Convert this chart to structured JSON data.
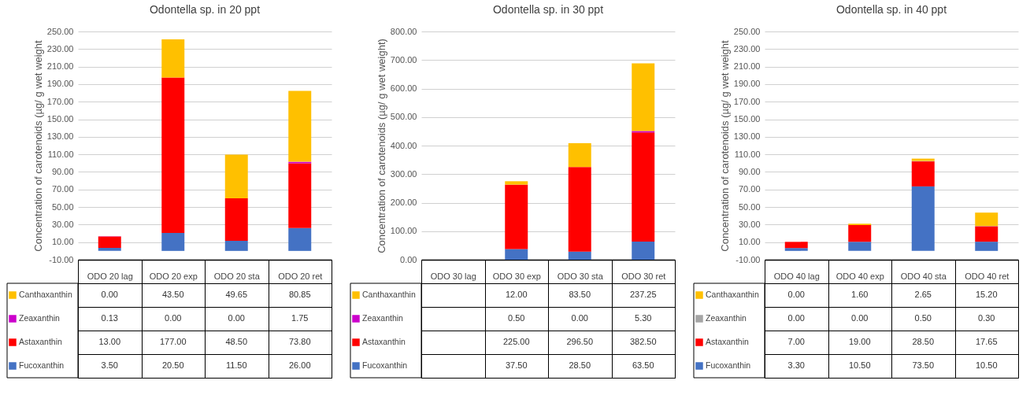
{
  "chart_data": [
    {
      "type": "bar",
      "title": "Odontella sp. in 20 ppt",
      "ylabel": "Concentration of carotenoids (µg/ g wet weight",
      "categories": [
        "ODO 20 lag",
        "ODO 20 exp",
        "ODO 20 sta",
        "ODO 20 ret"
      ],
      "stacked": true,
      "grid": "y",
      "legend": "bottom left",
      "ylim": [
        -10,
        250
      ],
      "yticks": [
        {
          "value": -10,
          "label": "-10.00"
        },
        {
          "value": 10,
          "label": "10.00"
        },
        {
          "value": 30,
          "label": "30.00"
        },
        {
          "value": 50,
          "label": "50.00"
        },
        {
          "value": 70,
          "label": "70.00"
        },
        {
          "value": 90,
          "label": "90.00"
        },
        {
          "value": 110,
          "label": "110.00"
        },
        {
          "value": 130,
          "label": "130.00"
        },
        {
          "value": 150,
          "label": "150.00"
        },
        {
          "value": 170,
          "label": "170.00"
        },
        {
          "value": 190,
          "label": "190.00"
        },
        {
          "value": 210,
          "label": "210.00"
        },
        {
          "value": 230,
          "label": "230.00"
        },
        {
          "value": 250,
          "label": "250.00"
        }
      ],
      "series": [
        {
          "name": "Fucoxanthin",
          "color": "#4472c4",
          "values": [
            3.5,
            20.5,
            11.5,
            26
          ],
          "value_labels": [
            "3.50",
            "20.50",
            "11.50",
            "26.00"
          ]
        },
        {
          "name": "Astaxanthin",
          "color": "#ff0000",
          "values": [
            13,
            177,
            48.5,
            73.8
          ],
          "value_labels": [
            "13.00",
            "177.00",
            "48.50",
            "73.80"
          ]
        },
        {
          "name": "Zeaxanthin",
          "color": "#cc00cc",
          "values": [
            0.13,
            0,
            0,
            1.75
          ],
          "value_labels": [
            "0.13",
            "0.00",
            "0.00",
            "1.75"
          ]
        },
        {
          "name": "Canthaxanthin",
          "color": "#ffc000",
          "values": [
            0,
            43.5,
            49.65,
            80.85
          ],
          "value_labels": [
            "0.00",
            "43.50",
            "49.65",
            "80.85"
          ]
        }
      ]
    },
    {
      "type": "bar",
      "title": "Odontella sp. in 30 ppt",
      "ylabel": "Concentration of carotenoids (µg/ g wet weight)",
      "categories": [
        "ODO 30 lag",
        "ODO 30 exp",
        "ODO 30 sta",
        "ODO 30 ret"
      ],
      "stacked": true,
      "grid": "y",
      "legend": "bottom left",
      "ylim": [
        0,
        800
      ],
      "yticks": [
        {
          "value": 0,
          "label": "0.00"
        },
        {
          "value": 100,
          "label": "100.00"
        },
        {
          "value": 200,
          "label": "200.00"
        },
        {
          "value": 300,
          "label": "300.00"
        },
        {
          "value": 400,
          "label": "400.00"
        },
        {
          "value": 500,
          "label": "500.00"
        },
        {
          "value": 600,
          "label": "600.00"
        },
        {
          "value": 700,
          "label": "700.00"
        },
        {
          "value": 800,
          "label": "800.00"
        }
      ],
      "series": [
        {
          "name": "Fucoxanthin",
          "color": "#4472c4",
          "values": [
            null,
            37.5,
            28.5,
            63.5
          ],
          "value_labels": [
            null,
            "37.50",
            "28.50",
            "63.50"
          ]
        },
        {
          "name": "Astaxanthin",
          "color": "#ff0000",
          "values": [
            null,
            225,
            296.5,
            382.5
          ],
          "value_labels": [
            null,
            "225.00",
            "296.50",
            "382.50"
          ]
        },
        {
          "name": "Zeaxanthin",
          "color": "#cc00cc",
          "values": [
            null,
            0.5,
            0,
            5.3
          ],
          "value_labels": [
            null,
            "0.50",
            "0.00",
            "5.30"
          ]
        },
        {
          "name": "Canthaxanthin",
          "color": "#ffc000",
          "values": [
            null,
            12,
            83.5,
            237.25
          ],
          "value_labels": [
            null,
            "12.00",
            "83.50",
            "237.25"
          ]
        }
      ]
    },
    {
      "type": "bar",
      "title": "Odontella sp. in 40 ppt",
      "ylabel": "Concentration of carotenoids (µg/ g wet weight",
      "categories": [
        "ODO 40 lag",
        "ODO 40 exp",
        "ODO 40 sta",
        "ODO 40 ret"
      ],
      "stacked": true,
      "grid": "y",
      "legend": "bottom left",
      "ylim": [
        -10,
        250
      ],
      "yticks": [
        {
          "value": -10,
          "label": "-10.00"
        },
        {
          "value": 10,
          "label": "10.00"
        },
        {
          "value": 30,
          "label": "30.00"
        },
        {
          "value": 50,
          "label": "50.00"
        },
        {
          "value": 70,
          "label": "70.00"
        },
        {
          "value": 90,
          "label": "90.00"
        },
        {
          "value": 110,
          "label": "110.00"
        },
        {
          "value": 130,
          "label": "130.00"
        },
        {
          "value": 150,
          "label": "150.00"
        },
        {
          "value": 170,
          "label": "170.00"
        },
        {
          "value": 190,
          "label": "190.00"
        },
        {
          "value": 210,
          "label": "210.00"
        },
        {
          "value": 230,
          "label": "230.00"
        },
        {
          "value": 250,
          "label": "250.00"
        }
      ],
      "series": [
        {
          "name": "Fucoxanthin",
          "color": "#4472c4",
          "values": [
            3.3,
            10.5,
            73.5,
            10.5
          ],
          "value_labels": [
            "3.30",
            "10.50",
            "73.50",
            "10.50"
          ]
        },
        {
          "name": "Astaxanthin",
          "color": "#ff0000",
          "values": [
            7,
            19,
            28.5,
            17.65
          ],
          "value_labels": [
            "7.00",
            "19.00",
            "28.50",
            "17.65"
          ]
        },
        {
          "name": "Zeaxanthin",
          "color": "#a5a5a5",
          "values": [
            0,
            0,
            0.5,
            0.3
          ],
          "value_labels": [
            "0.00",
            "0.00",
            "0.50",
            "0.30"
          ]
        },
        {
          "name": "Canthaxanthin",
          "color": "#ffc000",
          "values": [
            0,
            1.6,
            2.65,
            15.2
          ],
          "value_labels": [
            "0.00",
            "1.60",
            "2.65",
            "15.20"
          ]
        }
      ]
    }
  ]
}
